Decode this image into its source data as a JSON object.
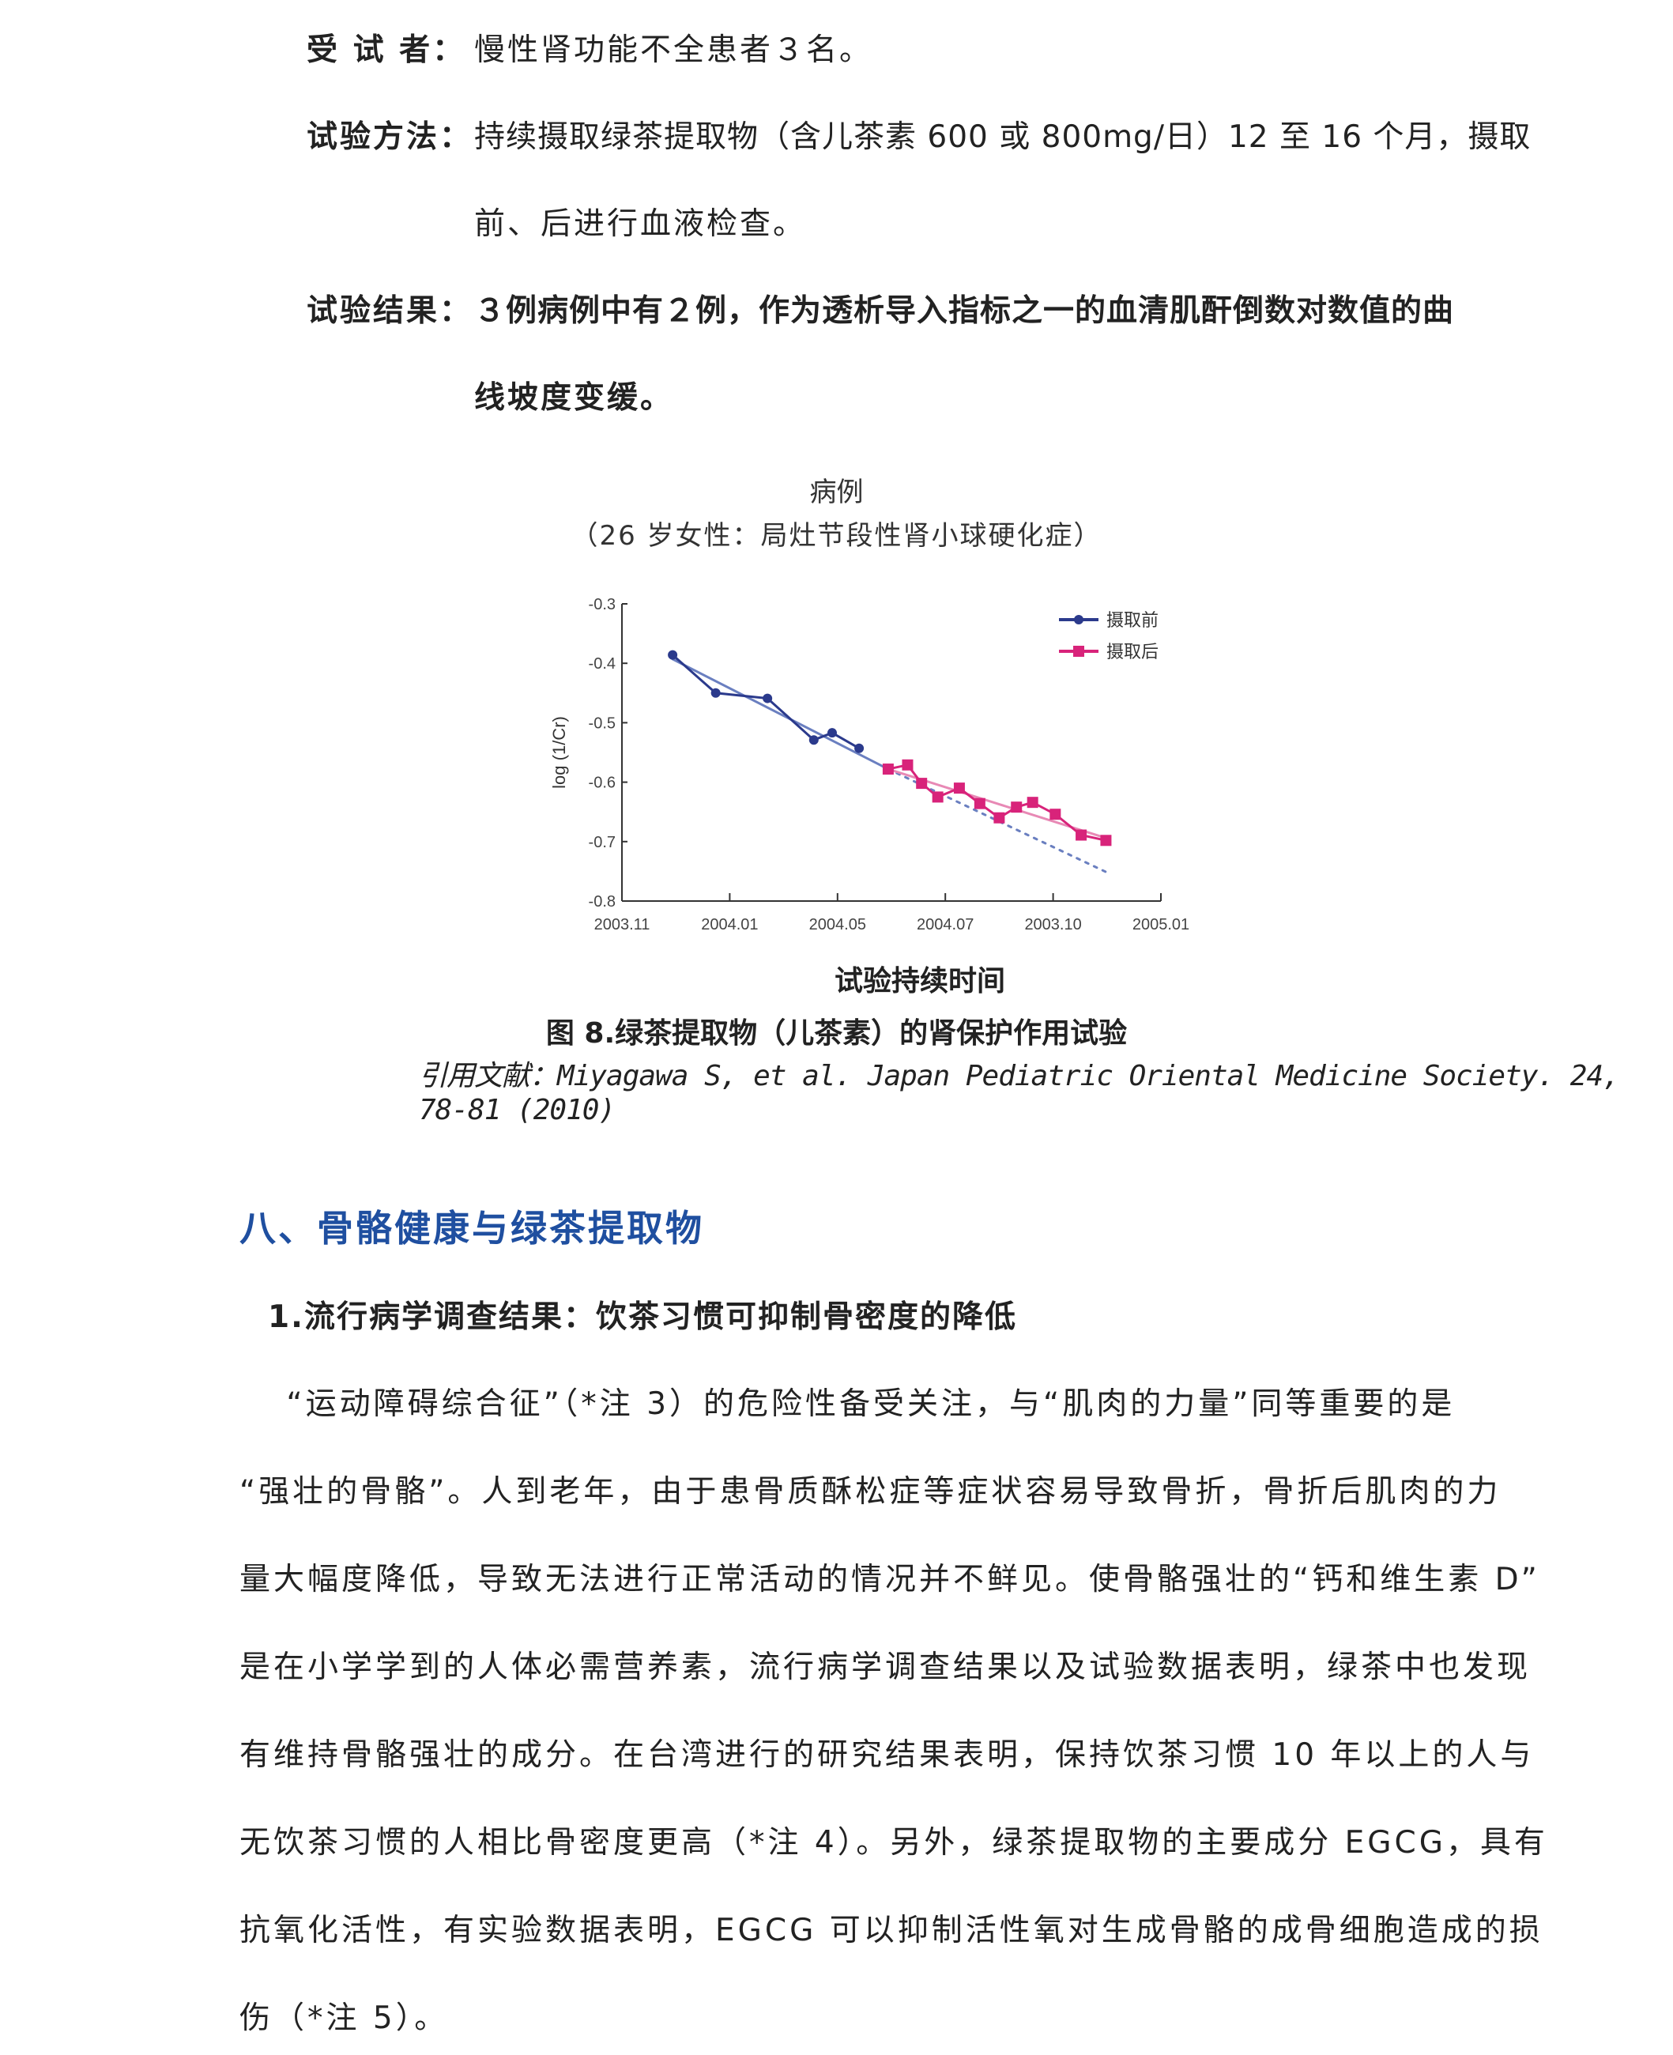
{
  "trial": [
    {
      "label": "受 试 者：",
      "lines": [
        "慢性肾功能不全患者３名。"
      ]
    },
    {
      "label": "试验方法：",
      "lines": [
        "持续摄取绿茶提取物（含儿茶素 600 或 800mg/日）12 至 16 个月，摄取",
        "前、后进行血液检查。"
      ]
    },
    {
      "label": "试验结果：",
      "lines": [
        "３例病例中有２例，作为透析导入指标之一的血清肌酐倒数对数值的曲",
        "线坡度变缓。"
      ]
    }
  ],
  "figure": {
    "caption": "图 8.绿茶提取物（儿茶素）的肾保护作用试验",
    "citation": "引用文献：Miyagawa S, et al. Japan Pediatric Oriental Medicine Society. 24, 78-81 (2010)"
  },
  "chart_data": {
    "type": "line",
    "title": "病例",
    "subtitle": "（26 岁女性：局灶节段性肾小球硬化症）",
    "xlabel": "试验持续时间",
    "ylabel": "log (1/Cr)",
    "x_tick_labels": [
      "2003.11",
      "2004.01",
      "2004.05",
      "2004.07",
      "2003.10",
      "2005.01"
    ],
    "y_ticks": [
      -0.3,
      -0.4,
      -0.5,
      -0.6,
      -0.7,
      -0.8
    ],
    "ylim": [
      -0.8,
      -0.3
    ],
    "xlim": [
      0,
      5
    ],
    "legend_position": "top-right",
    "grid": false,
    "series": [
      {
        "name": "摄取前",
        "color": "#2b3a8c",
        "marker": "circle",
        "x": [
          0.47,
          0.87,
          1.35,
          1.78,
          1.95,
          2.2
        ],
        "y": [
          -0.386,
          -0.45,
          -0.459,
          -0.529,
          -0.517,
          -0.543
        ]
      },
      {
        "name": "摄取后",
        "color": "#d8237a",
        "marker": "square",
        "x": [
          2.47,
          2.65,
          2.78,
          2.93,
          3.13,
          3.32,
          3.5,
          3.66,
          3.81,
          4.02,
          4.26,
          4.49
        ],
        "y": [
          -0.578,
          -0.571,
          -0.602,
          -0.625,
          -0.61,
          -0.636,
          -0.66,
          -0.642,
          -0.634,
          -0.654,
          -0.689,
          -0.698
        ]
      }
    ],
    "trendlines": [
      {
        "color": "#6a7fc0",
        "x": [
          0.47,
          2.47
        ],
        "y": [
          -0.393,
          -0.578
        ]
      },
      {
        "color": "#6a7fc0",
        "style": "dotted",
        "x": [
          2.47,
          4.49
        ],
        "y": [
          -0.578,
          -0.751
        ]
      },
      {
        "color": "#e889b5",
        "x": [
          2.47,
          4.49
        ],
        "y": [
          -0.578,
          -0.694
        ]
      }
    ]
  },
  "section": {
    "heading": "八、骨骼健康与绿茶提取物",
    "subheading": "1.流行病学调查结果：饮茶习惯可抑制骨密度的降低",
    "paragraph": [
      "　 “运动障碍综合征”（*注 3）的危险性备受关注，与“肌肉的力量”同等重要的是",
      "“强壮的骨骼”。人到老年，由于患骨质酥松症等症状容易导致骨折，骨折后肌肉的力",
      "量大幅度降低，导致无法进行正常活动的情况并不鲜见。使骨骼强壮的“钙和维生素 D”",
      "是在小学学到的人体必需营养素，流行病学调查结果以及试验数据表明，绿茶中也发现",
      "有维持骨骼强壮的成分。在台湾进行的研究结果表明，保持饮茶习惯 10 年以上的人与",
      "无饮茶习惯的人相比骨密度更高（*注 4）。另外，绿茶提取物的主要成分 EGCG，具有",
      "抗氧化活性，有实验数据表明，EGCG 可以抑制活性氧对生成骨骼的成骨细胞造成的损",
      "伤（*注 5）。"
    ]
  }
}
